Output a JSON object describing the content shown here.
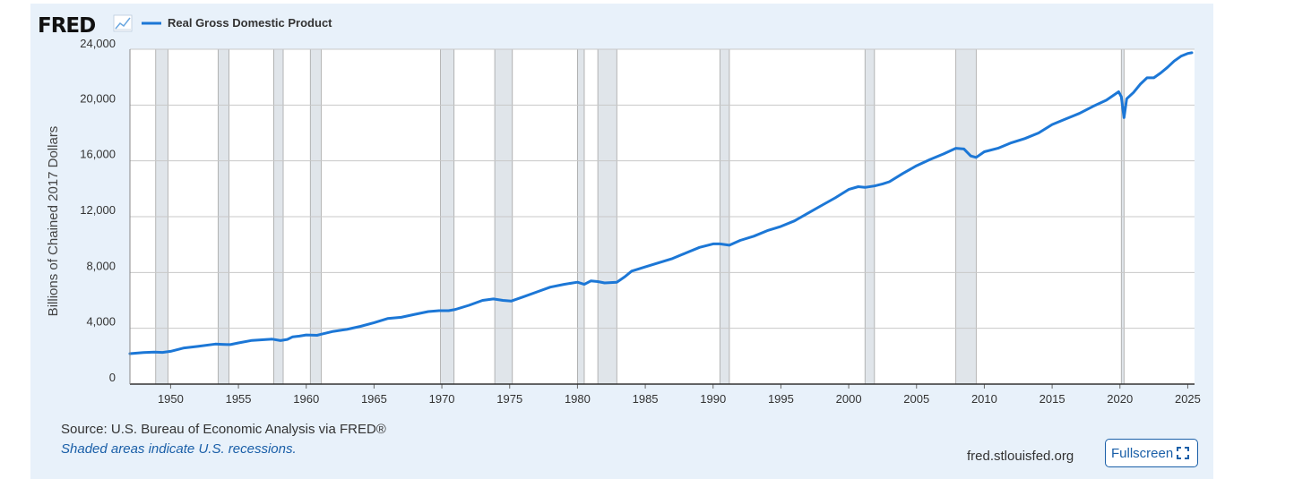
{
  "brand": {
    "logo_text": "FRED",
    "logo_icon": "chart-line-icon"
  },
  "legend": {
    "label": "Real Gross Domestic Product",
    "color": "#1c77d6"
  },
  "source_text": "Source: U.S. Bureau of Economic Analysis via FRED®",
  "note_text": "Shaded areas indicate U.S. recessions.",
  "site_text": "fred.stlouisfed.org",
  "fullscreen": {
    "label": "Fullscreen",
    "icon": "expand-icon"
  },
  "colors": {
    "panel_bg": "#e8f1fa",
    "line": "#1c77d6",
    "recession_fill": "#e0e5ea",
    "recession_edge": "#a5a5a5",
    "grid": "#c8c8c8",
    "link": "#1a5fa8"
  },
  "chart_data": {
    "type": "line",
    "title": "Real Gross Domestic Product",
    "xlabel": "",
    "ylabel": "Billions of Chained 2017 Dollars",
    "xlim": [
      1947.0,
      2025.5
    ],
    "ylim": [
      0,
      24000
    ],
    "x_ticks": [
      1950,
      1955,
      1960,
      1965,
      1970,
      1975,
      1980,
      1985,
      1990,
      1995,
      2000,
      2005,
      2010,
      2015,
      2020,
      2025
    ],
    "y_ticks": [
      0,
      4000,
      8000,
      12000,
      16000,
      20000,
      24000
    ],
    "y_tick_labels": [
      "0",
      "4,000",
      "8,000",
      "12,000",
      "16,000",
      "20,000",
      "24,000"
    ],
    "grid": true,
    "legend_position": "top-left",
    "recessions": [
      [
        1948.9,
        1949.8
      ],
      [
        1953.5,
        1954.3
      ],
      [
        1957.6,
        1958.3
      ],
      [
        1960.3,
        1961.1
      ],
      [
        1969.9,
        1970.9
      ],
      [
        1973.9,
        1975.2
      ],
      [
        1980.0,
        1980.5
      ],
      [
        1981.5,
        1982.9
      ],
      [
        1990.5,
        1991.2
      ],
      [
        2001.2,
        2001.9
      ],
      [
        2007.9,
        2009.4
      ],
      [
        2020.1,
        2020.3
      ]
    ],
    "series": [
      {
        "name": "Real Gross Domestic Product",
        "x": [
          1947.0,
          1948.0,
          1948.8,
          1949.4,
          1950.0,
          1951.0,
          1952.0,
          1953.3,
          1953.8,
          1954.4,
          1955.0,
          1956.0,
          1957.5,
          1958.1,
          1958.6,
          1959.0,
          1959.5,
          1960.0,
          1960.8,
          1961.0,
          1962.0,
          1963.0,
          1964.0,
          1965.0,
          1966.0,
          1967.0,
          1968.0,
          1969.0,
          1969.8,
          1970.5,
          1971.0,
          1972.0,
          1973.0,
          1973.8,
          1974.5,
          1975.1,
          1976.0,
          1977.0,
          1978.0,
          1979.0,
          1980.0,
          1980.5,
          1981.0,
          1981.5,
          1982.0,
          1982.9,
          1983.5,
          1984.0,
          1985.0,
          1986.0,
          1987.0,
          1988.0,
          1989.0,
          1990.0,
          1990.5,
          1991.2,
          1992.0,
          1993.0,
          1994.0,
          1995.0,
          1996.0,
          1997.0,
          1998.0,
          1999.0,
          2000.0,
          2000.7,
          2001.2,
          2001.9,
          2002.5,
          2003.0,
          2004.0,
          2005.0,
          2006.0,
          2007.0,
          2007.9,
          2008.5,
          2009.0,
          2009.4,
          2010.0,
          2011.0,
          2012.0,
          2013.0,
          2014.0,
          2015.0,
          2016.0,
          2017.0,
          2018.0,
          2019.0,
          2019.9,
          2020.1,
          2020.3,
          2020.5,
          2021.0,
          2021.5,
          2022.0,
          2022.5,
          2023.0,
          2023.5,
          2024.0,
          2024.5,
          2025.0,
          2025.3
        ],
        "values": [
          2180,
          2260,
          2300,
          2270,
          2350,
          2590,
          2700,
          2870,
          2850,
          2830,
          2950,
          3130,
          3220,
          3120,
          3200,
          3390,
          3440,
          3520,
          3500,
          3550,
          3780,
          3920,
          4140,
          4400,
          4700,
          4790,
          5000,
          5200,
          5260,
          5260,
          5350,
          5650,
          6000,
          6100,
          6000,
          5950,
          6250,
          6600,
          6950,
          7150,
          7300,
          7150,
          7400,
          7350,
          7250,
          7300,
          7700,
          8100,
          8400,
          8700,
          9000,
          9400,
          9800,
          10050,
          10050,
          9950,
          10300,
          10600,
          11000,
          11300,
          11700,
          12250,
          12800,
          13350,
          13950,
          14150,
          14100,
          14200,
          14350,
          14500,
          15100,
          15650,
          16100,
          16500,
          16900,
          16850,
          16350,
          16250,
          16650,
          16900,
          17300,
          17600,
          18000,
          18600,
          19000,
          19400,
          19900,
          20350,
          20950,
          20600,
          19100,
          20450,
          20900,
          21500,
          21950,
          21950,
          22300,
          22700,
          23150,
          23500,
          23700,
          23750
        ]
      }
    ]
  }
}
